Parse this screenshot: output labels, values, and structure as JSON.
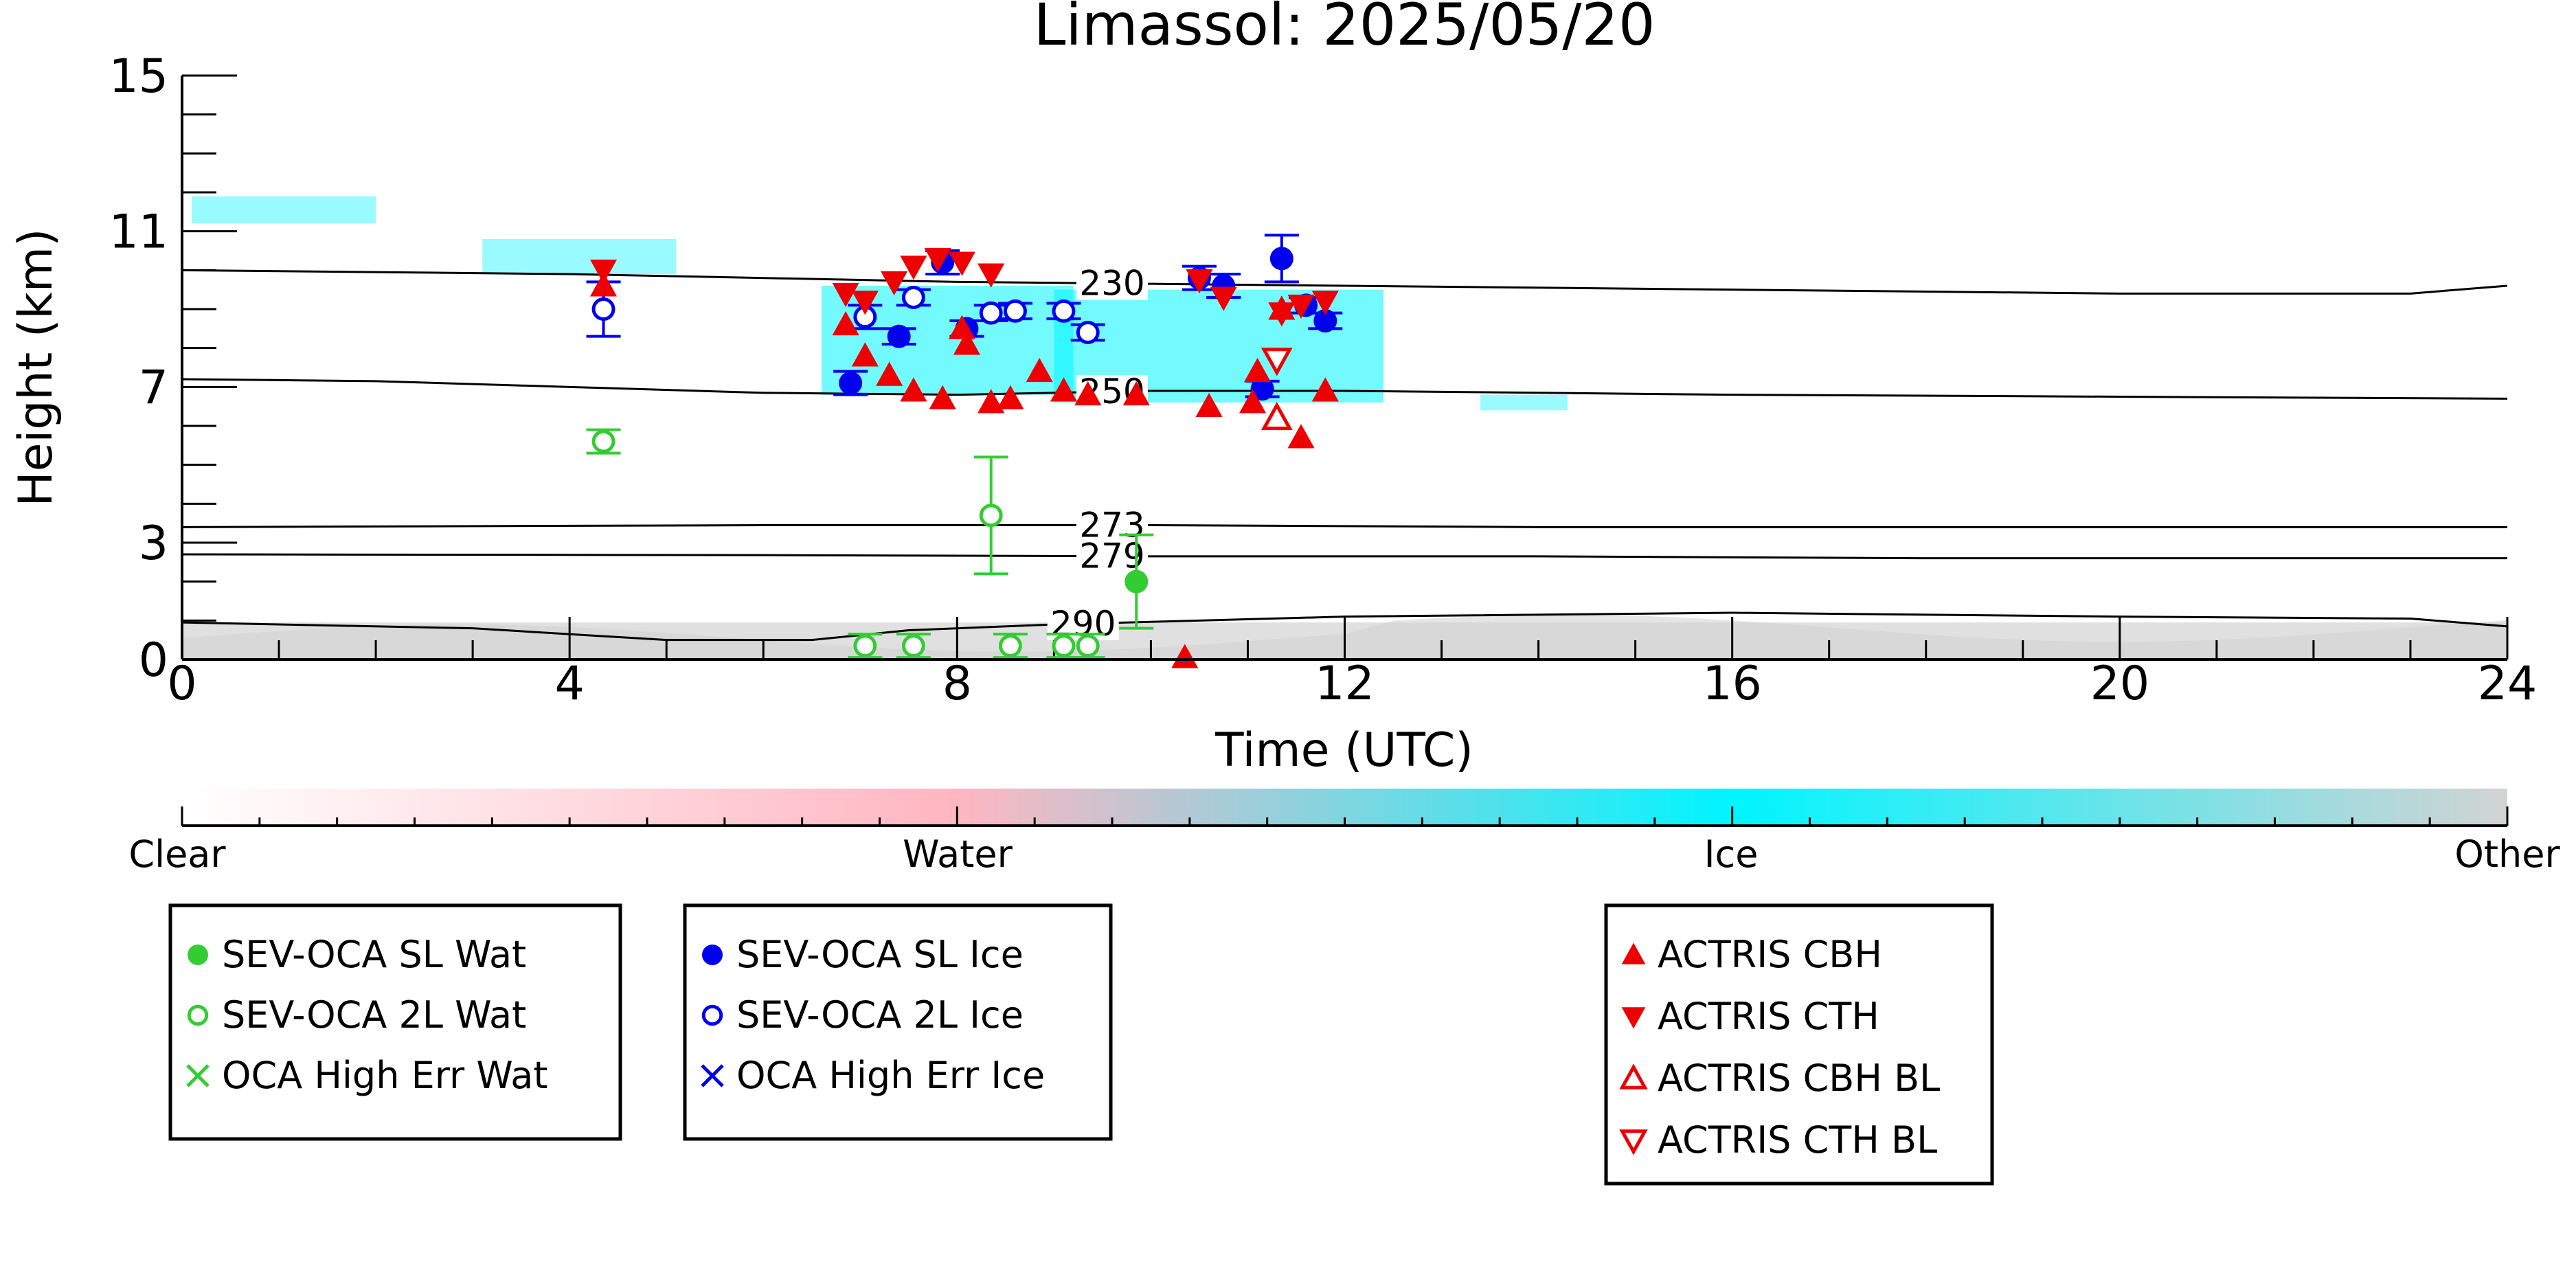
{
  "chart_data": {
    "type": "scatter",
    "title": "Limassol: 2025/05/20",
    "xlabel": "Time (UTC)",
    "ylabel": "Height (km)",
    "xlim": [
      0,
      24
    ],
    "ylim": [
      0,
      15
    ],
    "x_ticks": [
      "0",
      "4",
      "8",
      "12",
      "16",
      "20",
      "24"
    ],
    "y_ticks": [
      "0",
      "3",
      "7",
      "11",
      "15"
    ],
    "colorbar": {
      "labels": [
        "Clear",
        "Water",
        "Ice",
        "Other"
      ],
      "colors": [
        "#ffffff",
        "#ffb6c1",
        "#00f5ff",
        "#d3d3d3"
      ]
    },
    "contours": [
      {
        "label": "230",
        "label_x": 9.6,
        "points": [
          [
            0,
            10.0
          ],
          [
            4,
            9.9
          ],
          [
            8,
            9.7
          ],
          [
            12,
            9.6
          ],
          [
            16,
            9.5
          ],
          [
            20,
            9.4
          ],
          [
            23,
            9.4
          ],
          [
            24,
            9.6
          ]
        ]
      },
      {
        "label": "250",
        "label_x": 9.6,
        "points": [
          [
            0,
            7.2
          ],
          [
            2,
            7.15
          ],
          [
            4,
            7.0
          ],
          [
            6,
            6.85
          ],
          [
            8,
            6.8
          ],
          [
            10,
            6.9
          ],
          [
            12,
            6.9
          ],
          [
            16,
            6.8
          ],
          [
            20,
            6.75
          ],
          [
            24,
            6.7
          ]
        ]
      },
      {
        "label": "273",
        "label_x": 9.6,
        "points": [
          [
            0,
            3.4
          ],
          [
            6,
            3.45
          ],
          [
            10,
            3.45
          ],
          [
            14,
            3.4
          ],
          [
            18,
            3.4
          ],
          [
            24,
            3.4
          ]
        ]
      },
      {
        "label": "279",
        "label_x": 9.6,
        "points": [
          [
            0,
            2.7
          ],
          [
            6,
            2.68
          ],
          [
            10,
            2.65
          ],
          [
            14,
            2.65
          ],
          [
            18,
            2.6
          ],
          [
            24,
            2.6
          ]
        ]
      },
      {
        "label": "290",
        "label_x": 9.3,
        "points": [
          [
            0,
            0.95
          ],
          [
            3,
            0.8
          ],
          [
            5,
            0.5
          ],
          [
            6.5,
            0.5
          ],
          [
            7.5,
            0.75
          ],
          [
            9,
            0.9
          ],
          [
            12,
            1.1
          ],
          [
            16,
            1.2
          ],
          [
            20,
            1.1
          ],
          [
            23,
            1.05
          ],
          [
            24,
            0.85
          ]
        ]
      }
    ],
    "series": [
      {
        "name": "SEV-OCA SL Wat",
        "marker": "filled-circle",
        "color": "#33cc33",
        "points": [
          {
            "x": 9.85,
            "y": 2.0,
            "err": 1.2
          }
        ]
      },
      {
        "name": "SEV-OCA 2L Wat",
        "marker": "open-circle",
        "color": "#33cc33",
        "points": [
          {
            "x": 4.35,
            "y": 5.6,
            "err": 0.3
          },
          {
            "x": 8.35,
            "y": 3.7,
            "err": 1.5
          },
          {
            "x": 7.05,
            "y": 0.35,
            "err": 0.3
          },
          {
            "x": 7.55,
            "y": 0.35,
            "err": 0.3
          },
          {
            "x": 8.55,
            "y": 0.35,
            "err": 0.3
          },
          {
            "x": 9.1,
            "y": 0.35,
            "err": 0.3
          },
          {
            "x": 9.35,
            "y": 0.35,
            "err": 0.3
          }
        ]
      },
      {
        "name": "OCA High Err Wat",
        "marker": "x",
        "color": "#33cc33",
        "points": []
      },
      {
        "name": "SEV-OCA SL Ice",
        "marker": "filled-circle",
        "color": "#0000ee",
        "points": [
          {
            "x": 6.9,
            "y": 7.1,
            "err": 0.3
          },
          {
            "x": 7.4,
            "y": 8.3,
            "err": 0.2
          },
          {
            "x": 7.85,
            "y": 10.2,
            "err": 0.3
          },
          {
            "x": 8.1,
            "y": 8.5,
            "err": 0.2
          },
          {
            "x": 10.5,
            "y": 9.8,
            "err": 0.3
          },
          {
            "x": 10.75,
            "y": 9.6,
            "err": 0.3
          },
          {
            "x": 11.15,
            "y": 6.95,
            "err": 0.2
          },
          {
            "x": 11.35,
            "y": 10.3,
            "err": 0.6
          },
          {
            "x": 11.6,
            "y": 9.1,
            "err": 0.2
          },
          {
            "x": 11.8,
            "y": 8.7,
            "err": 0.2
          }
        ]
      },
      {
        "name": "SEV-OCA 2L Ice",
        "marker": "open-circle",
        "color": "#0000ee",
        "points": [
          {
            "x": 4.35,
            "y": 9.0,
            "err": 0.7
          },
          {
            "x": 7.05,
            "y": 8.8,
            "err": 0.3
          },
          {
            "x": 7.55,
            "y": 9.3,
            "err": 0.2
          },
          {
            "x": 8.35,
            "y": 8.9,
            "err": 0.2
          },
          {
            "x": 8.6,
            "y": 8.95,
            "err": 0.2
          },
          {
            "x": 9.1,
            "y": 8.95,
            "err": 0.2
          },
          {
            "x": 9.35,
            "y": 8.4,
            "err": 0.2
          }
        ]
      },
      {
        "name": "OCA High Err Ice",
        "marker": "x",
        "color": "#0000ee",
        "points": []
      },
      {
        "name": "ACTRIS CBH",
        "marker": "triangle-up",
        "color": "#ee0000",
        "points": [
          {
            "x": 4.35,
            "y": 9.6
          },
          {
            "x": 6.85,
            "y": 8.6
          },
          {
            "x": 7.05,
            "y": 7.8
          },
          {
            "x": 7.3,
            "y": 7.3
          },
          {
            "x": 7.55,
            "y": 6.9
          },
          {
            "x": 7.85,
            "y": 6.7
          },
          {
            "x": 8.05,
            "y": 8.5
          },
          {
            "x": 8.1,
            "y": 8.1
          },
          {
            "x": 8.35,
            "y": 6.6
          },
          {
            "x": 8.55,
            "y": 6.7
          },
          {
            "x": 8.85,
            "y": 7.4
          },
          {
            "x": 9.1,
            "y": 6.9
          },
          {
            "x": 9.35,
            "y": 6.8
          },
          {
            "x": 9.85,
            "y": 6.8
          },
          {
            "x": 10.6,
            "y": 6.5
          },
          {
            "x": 11.05,
            "y": 6.6
          },
          {
            "x": 11.1,
            "y": 7.4
          },
          {
            "x": 11.35,
            "y": 9.0
          },
          {
            "x": 11.55,
            "y": 5.7
          },
          {
            "x": 11.8,
            "y": 6.9
          },
          {
            "x": 10.35,
            "y": 0.05
          }
        ]
      },
      {
        "name": "ACTRIS CTH",
        "marker": "triangle-down",
        "color": "#ee0000",
        "points": [
          {
            "x": 4.35,
            "y": 10.0
          },
          {
            "x": 6.85,
            "y": 9.4
          },
          {
            "x": 7.05,
            "y": 9.2
          },
          {
            "x": 7.35,
            "y": 9.7
          },
          {
            "x": 7.55,
            "y": 10.1
          },
          {
            "x": 7.8,
            "y": 10.3
          },
          {
            "x": 8.05,
            "y": 10.2
          },
          {
            "x": 8.35,
            "y": 9.9
          },
          {
            "x": 10.5,
            "y": 9.75
          },
          {
            "x": 10.75,
            "y": 9.3
          },
          {
            "x": 11.35,
            "y": 8.9
          },
          {
            "x": 11.55,
            "y": 9.1
          },
          {
            "x": 11.8,
            "y": 9.2
          }
        ]
      },
      {
        "name": "ACTRIS CBH BL",
        "marker": "open-triangle-up",
        "color": "#ee0000",
        "points": [
          {
            "x": 11.3,
            "y": 6.2
          }
        ]
      },
      {
        "name": "ACTRIS CTH BL",
        "marker": "open-triangle-down",
        "color": "#ee0000",
        "points": [
          {
            "x": 11.3,
            "y": 7.7
          }
        ]
      }
    ],
    "legends": [
      [
        "SEV-OCA SL Wat",
        "SEV-OCA 2L Wat",
        "OCA High Err Wat"
      ],
      [
        "SEV-OCA SL Ice",
        "SEV-OCA 2L Ice",
        "OCA High Err Ice"
      ],
      [
        "ACTRIS CBH",
        "ACTRIS CTH",
        "ACTRIS CBH BL",
        "ACTRIS CTH BL"
      ]
    ],
    "grid": false
  }
}
